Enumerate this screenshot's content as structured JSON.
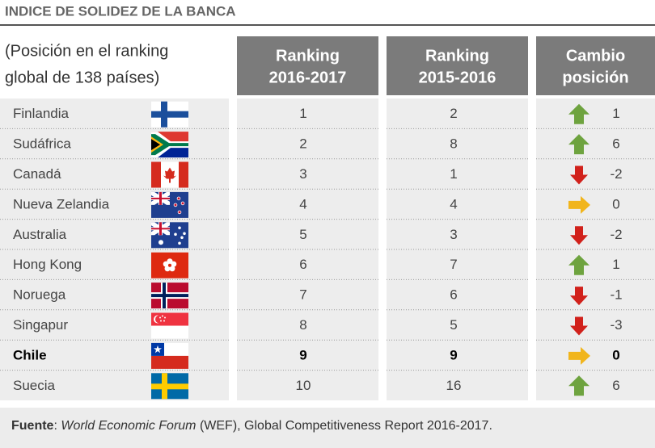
{
  "title": "INDICE DE SOLIDEZ DE LA BANCA",
  "subtitle_lines": [
    "(Posición en el ranking",
    "global de 138 países)"
  ],
  "headers": [
    {
      "lines": [
        "Ranking",
        "2016-2017"
      ]
    },
    {
      "lines": [
        "Ranking",
        "2015-2016"
      ]
    },
    {
      "lines": [
        "Cambio",
        "posición"
      ]
    }
  ],
  "rows": [
    {
      "country": "Finlandia",
      "ranking_2017": 1,
      "ranking_2016": 2,
      "change": 1
    },
    {
      "country": "Sudáfrica",
      "ranking_2017": 2,
      "ranking_2016": 8,
      "change": 6
    },
    {
      "country": "Canadá",
      "ranking_2017": 3,
      "ranking_2016": 1,
      "change": -2
    },
    {
      "country": "Nueva Zelandia",
      "ranking_2017": 4,
      "ranking_2016": 4,
      "change": 0
    },
    {
      "country": "Australia",
      "ranking_2017": 5,
      "ranking_2016": 3,
      "change": -2
    },
    {
      "country": "Hong Kong",
      "ranking_2017": 6,
      "ranking_2016": 7,
      "change": 1
    },
    {
      "country": "Noruega",
      "ranking_2017": 7,
      "ranking_2016": 6,
      "change": -1
    },
    {
      "country": "Singapur",
      "ranking_2017": 8,
      "ranking_2016": 5,
      "change": -3
    },
    {
      "country": "Chile",
      "ranking_2017": 9,
      "ranking_2016": 9,
      "change": 0,
      "bold": true
    },
    {
      "country": "Suecia",
      "ranking_2017": 10,
      "ranking_2016": 16,
      "change": 6
    }
  ],
  "footer": {
    "label": "Fuente",
    "separator": ": ",
    "source": "World Economic Forum",
    "rest": " (WEF), Global Competitiveness Report 2016-2017."
  }
}
